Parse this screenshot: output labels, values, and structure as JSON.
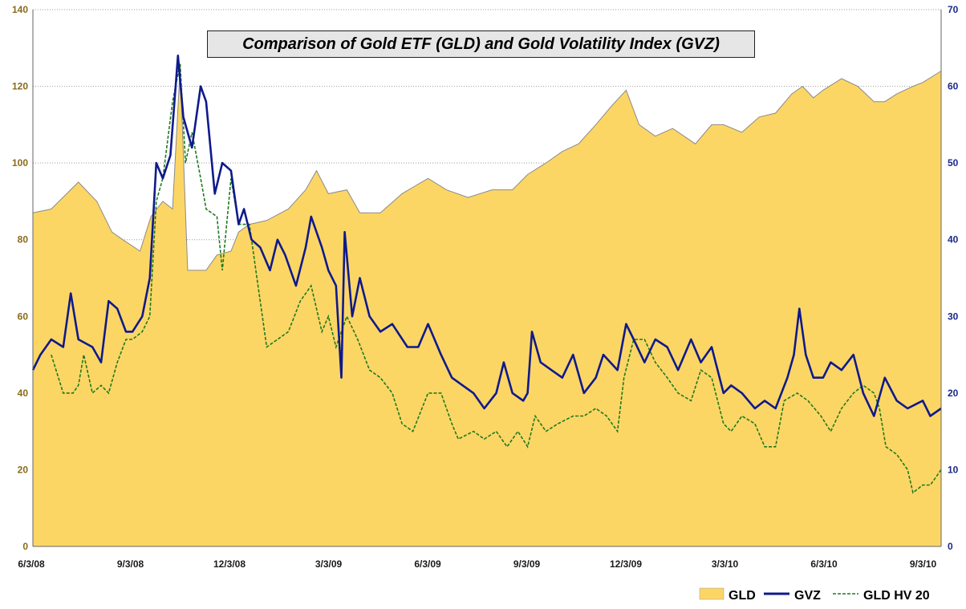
{
  "chart_data": {
    "type": "area",
    "title": "Comparison of Gold ETF (GLD) and Gold Volatility Index (GVZ)",
    "x_tick_labels": [
      "6/3/08",
      "9/3/08",
      "12/3/08",
      "3/3/09",
      "6/3/09",
      "9/3/09",
      "12/3/09",
      "3/3/10",
      "6/3/10",
      "9/3/10"
    ],
    "x_range": [
      "2008-06-03",
      "2010-09-20"
    ],
    "y_left": {
      "range": [
        0,
        140
      ],
      "ticks": [
        0,
        20,
        40,
        60,
        80,
        100,
        120,
        140
      ]
    },
    "y_right": {
      "range": [
        0,
        70
      ],
      "ticks": [
        0,
        10,
        20,
        30,
        40,
        50,
        60,
        70
      ]
    },
    "grid": "horizontal dotted",
    "legend_position": "bottom-right",
    "colors": {
      "gld": "#fcd665",
      "gld_edge": "#8a8a8a",
      "gvz": "#0f1a8c",
      "hv20": "#1e7a1e"
    },
    "series": [
      {
        "name": "GLD",
        "axis": "left",
        "style": "area",
        "points": [
          [
            "2008-06-03",
            87
          ],
          [
            "2008-06-20",
            88
          ],
          [
            "2008-07-15",
            95
          ],
          [
            "2008-08-01",
            90
          ],
          [
            "2008-08-15",
            82
          ],
          [
            "2008-08-25",
            80
          ],
          [
            "2008-09-10",
            77
          ],
          [
            "2008-09-20",
            86
          ],
          [
            "2008-10-01",
            90
          ],
          [
            "2008-10-10",
            88
          ],
          [
            "2008-10-17",
            125
          ],
          [
            "2008-10-24",
            72
          ],
          [
            "2008-11-10",
            72
          ],
          [
            "2008-11-20",
            76
          ],
          [
            "2008-12-03",
            77
          ],
          [
            "2008-12-10",
            82
          ],
          [
            "2008-12-20",
            84
          ],
          [
            "2009-01-05",
            85
          ],
          [
            "2009-01-25",
            88
          ],
          [
            "2009-02-10",
            93
          ],
          [
            "2009-02-20",
            98
          ],
          [
            "2009-03-03",
            92
          ],
          [
            "2009-03-20",
            93
          ],
          [
            "2009-04-01",
            87
          ],
          [
            "2009-04-20",
            87
          ],
          [
            "2009-05-10",
            92
          ],
          [
            "2009-06-03",
            96
          ],
          [
            "2009-06-20",
            93
          ],
          [
            "2009-07-10",
            91
          ],
          [
            "2009-08-01",
            93
          ],
          [
            "2009-08-20",
            93
          ],
          [
            "2009-09-03",
            97
          ],
          [
            "2009-09-20",
            100
          ],
          [
            "2009-10-05",
            103
          ],
          [
            "2009-10-20",
            105
          ],
          [
            "2009-11-05",
            110
          ],
          [
            "2009-11-20",
            115
          ],
          [
            "2009-12-03",
            119
          ],
          [
            "2009-12-15",
            110
          ],
          [
            "2009-12-30",
            107
          ],
          [
            "2010-01-15",
            109
          ],
          [
            "2010-02-05",
            105
          ],
          [
            "2010-02-20",
            110
          ],
          [
            "2010-03-03",
            110
          ],
          [
            "2010-03-20",
            108
          ],
          [
            "2010-04-05",
            112
          ],
          [
            "2010-04-20",
            113
          ],
          [
            "2010-05-05",
            118
          ],
          [
            "2010-05-15",
            120
          ],
          [
            "2010-05-25",
            117
          ],
          [
            "2010-06-03",
            119
          ],
          [
            "2010-06-20",
            122
          ],
          [
            "2010-07-05",
            120
          ],
          [
            "2010-07-20",
            116
          ],
          [
            "2010-07-30",
            116
          ],
          [
            "2010-08-10",
            118
          ],
          [
            "2010-08-25",
            120
          ],
          [
            "2010-09-03",
            121
          ],
          [
            "2010-09-20",
            124
          ]
        ]
      },
      {
        "name": "GVZ",
        "axis": "right",
        "style": "line",
        "points": [
          [
            "2008-06-03",
            23
          ],
          [
            "2008-06-10",
            25
          ],
          [
            "2008-06-20",
            27
          ],
          [
            "2008-07-01",
            26
          ],
          [
            "2008-07-08",
            33
          ],
          [
            "2008-07-15",
            27
          ],
          [
            "2008-07-28",
            26
          ],
          [
            "2008-08-05",
            24
          ],
          [
            "2008-08-12",
            32
          ],
          [
            "2008-08-20",
            31
          ],
          [
            "2008-08-28",
            28
          ],
          [
            "2008-09-03",
            28
          ],
          [
            "2008-09-12",
            30
          ],
          [
            "2008-09-19",
            35
          ],
          [
            "2008-09-25",
            50
          ],
          [
            "2008-10-01",
            48
          ],
          [
            "2008-10-08",
            51
          ],
          [
            "2008-10-15",
            64
          ],
          [
            "2008-10-20",
            56
          ],
          [
            "2008-10-28",
            52
          ],
          [
            "2008-11-05",
            60
          ],
          [
            "2008-11-10",
            58
          ],
          [
            "2008-11-18",
            46
          ],
          [
            "2008-11-25",
            50
          ],
          [
            "2008-12-03",
            49
          ],
          [
            "2008-12-10",
            42
          ],
          [
            "2008-12-15",
            44
          ],
          [
            "2008-12-22",
            40
          ],
          [
            "2008-12-30",
            39
          ],
          [
            "2009-01-08",
            36
          ],
          [
            "2009-01-15",
            40
          ],
          [
            "2009-01-22",
            38
          ],
          [
            "2009-02-01",
            34
          ],
          [
            "2009-02-10",
            39
          ],
          [
            "2009-02-15",
            43
          ],
          [
            "2009-02-25",
            39
          ],
          [
            "2009-03-03",
            36
          ],
          [
            "2009-03-10",
            34
          ],
          [
            "2009-03-15",
            22
          ],
          [
            "2009-03-18",
            41
          ],
          [
            "2009-03-25",
            30
          ],
          [
            "2009-04-01",
            35
          ],
          [
            "2009-04-10",
            30
          ],
          [
            "2009-04-20",
            28
          ],
          [
            "2009-05-01",
            29
          ],
          [
            "2009-05-15",
            26
          ],
          [
            "2009-05-25",
            26
          ],
          [
            "2009-06-03",
            29
          ],
          [
            "2009-06-15",
            25
          ],
          [
            "2009-06-25",
            22
          ],
          [
            "2009-07-05",
            21
          ],
          [
            "2009-07-15",
            20
          ],
          [
            "2009-07-25",
            18
          ],
          [
            "2009-08-05",
            20
          ],
          [
            "2009-08-12",
            24
          ],
          [
            "2009-08-20",
            20
          ],
          [
            "2009-08-30",
            19
          ],
          [
            "2009-09-03",
            20
          ],
          [
            "2009-09-07",
            28
          ],
          [
            "2009-09-15",
            24
          ],
          [
            "2009-09-25",
            23
          ],
          [
            "2009-10-05",
            22
          ],
          [
            "2009-10-15",
            25
          ],
          [
            "2009-10-25",
            20
          ],
          [
            "2009-11-05",
            22
          ],
          [
            "2009-11-12",
            25
          ],
          [
            "2009-11-25",
            23
          ],
          [
            "2009-12-03",
            29
          ],
          [
            "2009-12-10",
            27
          ],
          [
            "2009-12-20",
            24
          ],
          [
            "2009-12-30",
            27
          ],
          [
            "2010-01-10",
            26
          ],
          [
            "2010-01-20",
            23
          ],
          [
            "2010-02-01",
            27
          ],
          [
            "2010-02-10",
            24
          ],
          [
            "2010-02-20",
            26
          ],
          [
            "2010-03-03",
            20
          ],
          [
            "2010-03-10",
            21
          ],
          [
            "2010-03-20",
            20
          ],
          [
            "2010-04-01",
            18
          ],
          [
            "2010-04-10",
            19
          ],
          [
            "2010-04-20",
            18
          ],
          [
            "2010-05-01",
            22
          ],
          [
            "2010-05-07",
            25
          ],
          [
            "2010-05-12",
            31
          ],
          [
            "2010-05-18",
            25
          ],
          [
            "2010-05-25",
            22
          ],
          [
            "2010-06-03",
            22
          ],
          [
            "2010-06-10",
            24
          ],
          [
            "2010-06-20",
            23
          ],
          [
            "2010-07-01",
            25
          ],
          [
            "2010-07-10",
            20
          ],
          [
            "2010-07-20",
            17
          ],
          [
            "2010-07-30",
            22
          ],
          [
            "2010-08-10",
            19
          ],
          [
            "2010-08-20",
            18
          ],
          [
            "2010-09-03",
            19
          ],
          [
            "2010-09-10",
            17
          ],
          [
            "2010-09-20",
            18
          ]
        ]
      },
      {
        "name": "GLD HV 20",
        "axis": "right",
        "style": "dashed",
        "points": [
          [
            "2008-06-20",
            25
          ],
          [
            "2008-07-01",
            20
          ],
          [
            "2008-07-10",
            20
          ],
          [
            "2008-07-15",
            21
          ],
          [
            "2008-07-20",
            25
          ],
          [
            "2008-07-28",
            20
          ],
          [
            "2008-08-05",
            21
          ],
          [
            "2008-08-12",
            20
          ],
          [
            "2008-08-20",
            24
          ],
          [
            "2008-08-28",
            27
          ],
          [
            "2008-09-03",
            27
          ],
          [
            "2008-09-12",
            28
          ],
          [
            "2008-09-19",
            30
          ],
          [
            "2008-09-25",
            45
          ],
          [
            "2008-10-01",
            48
          ],
          [
            "2008-10-10",
            58
          ],
          [
            "2008-10-17",
            63
          ],
          [
            "2008-10-22",
            50
          ],
          [
            "2008-10-28",
            54
          ],
          [
            "2008-11-05",
            48
          ],
          [
            "2008-11-10",
            44
          ],
          [
            "2008-11-20",
            43
          ],
          [
            "2008-11-25",
            36
          ],
          [
            "2008-12-03",
            48
          ],
          [
            "2008-12-10",
            42
          ],
          [
            "2008-12-20",
            42
          ],
          [
            "2008-12-28",
            34
          ],
          [
            "2009-01-05",
            26
          ],
          [
            "2009-01-15",
            27
          ],
          [
            "2009-01-25",
            28
          ],
          [
            "2009-02-05",
            32
          ],
          [
            "2009-02-15",
            34
          ],
          [
            "2009-02-25",
            28
          ],
          [
            "2009-03-03",
            30
          ],
          [
            "2009-03-10",
            26
          ],
          [
            "2009-03-20",
            30
          ],
          [
            "2009-03-30",
            27
          ],
          [
            "2009-04-10",
            23
          ],
          [
            "2009-04-20",
            22
          ],
          [
            "2009-05-01",
            20
          ],
          [
            "2009-05-10",
            16
          ],
          [
            "2009-05-20",
            15
          ],
          [
            "2009-06-03",
            20
          ],
          [
            "2009-06-15",
            20
          ],
          [
            "2009-06-25",
            16
          ],
          [
            "2009-07-01",
            14
          ],
          [
            "2009-07-15",
            15
          ],
          [
            "2009-07-25",
            14
          ],
          [
            "2009-08-05",
            15
          ],
          [
            "2009-08-15",
            13
          ],
          [
            "2009-08-25",
            15
          ],
          [
            "2009-09-03",
            13
          ],
          [
            "2009-09-10",
            17
          ],
          [
            "2009-09-20",
            15
          ],
          [
            "2009-10-01",
            16
          ],
          [
            "2009-10-15",
            17
          ],
          [
            "2009-10-25",
            17
          ],
          [
            "2009-11-05",
            18
          ],
          [
            "2009-11-15",
            17
          ],
          [
            "2009-11-25",
            15
          ],
          [
            "2009-12-01",
            22
          ],
          [
            "2009-12-10",
            27
          ],
          [
            "2009-12-20",
            27
          ],
          [
            "2009-12-30",
            24
          ],
          [
            "2010-01-10",
            22
          ],
          [
            "2010-01-20",
            20
          ],
          [
            "2010-02-01",
            19
          ],
          [
            "2010-02-10",
            23
          ],
          [
            "2010-02-20",
            22
          ],
          [
            "2010-03-03",
            16
          ],
          [
            "2010-03-10",
            15
          ],
          [
            "2010-03-20",
            17
          ],
          [
            "2010-04-01",
            16
          ],
          [
            "2010-04-10",
            13
          ],
          [
            "2010-04-20",
            13
          ],
          [
            "2010-04-28",
            19
          ],
          [
            "2010-05-10",
            20
          ],
          [
            "2010-05-20",
            19
          ],
          [
            "2010-06-01",
            17
          ],
          [
            "2010-06-10",
            15
          ],
          [
            "2010-06-20",
            18
          ],
          [
            "2010-07-01",
            20
          ],
          [
            "2010-07-10",
            21
          ],
          [
            "2010-07-20",
            20
          ],
          [
            "2010-07-25",
            18
          ],
          [
            "2010-07-31",
            13
          ],
          [
            "2010-08-10",
            12
          ],
          [
            "2010-08-20",
            10
          ],
          [
            "2010-08-25",
            7
          ],
          [
            "2010-09-03",
            8
          ],
          [
            "2010-09-10",
            8
          ],
          [
            "2010-09-15",
            9
          ],
          [
            "2010-09-20",
            10
          ]
        ]
      }
    ]
  }
}
